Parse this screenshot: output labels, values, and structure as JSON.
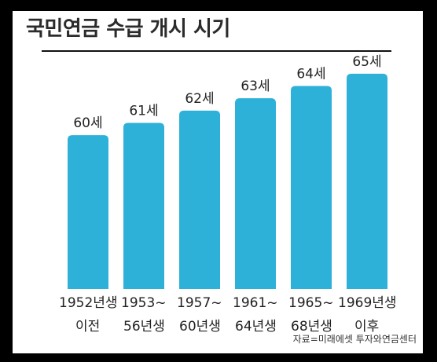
{
  "title": "국민연금 수급 개시 시기",
  "source": "자료=미래에셋 투자와연금센터",
  "colors": {
    "bar": "#2eb1d8",
    "text": "#222222",
    "background": "#ffffff"
  },
  "chart_data": {
    "type": "bar",
    "title": "국민연금 수급 개시 시기",
    "categories": [
      [
        "1952년생",
        "이전"
      ],
      [
        "1953~",
        "56년생"
      ],
      [
        "1957~",
        "60년생"
      ],
      [
        "1961~",
        "64년생"
      ],
      [
        "1965~",
        "68년생"
      ],
      [
        "1969년생",
        "이후"
      ]
    ],
    "values": [
      60,
      61,
      62,
      63,
      64,
      65
    ],
    "data_labels": [
      "60세",
      "61세",
      "62세",
      "63세",
      "64세",
      "65세"
    ],
    "ylim": [
      47.5,
      65.5
    ],
    "xlabel": "",
    "ylabel": "",
    "grid": false,
    "legend": "none"
  }
}
